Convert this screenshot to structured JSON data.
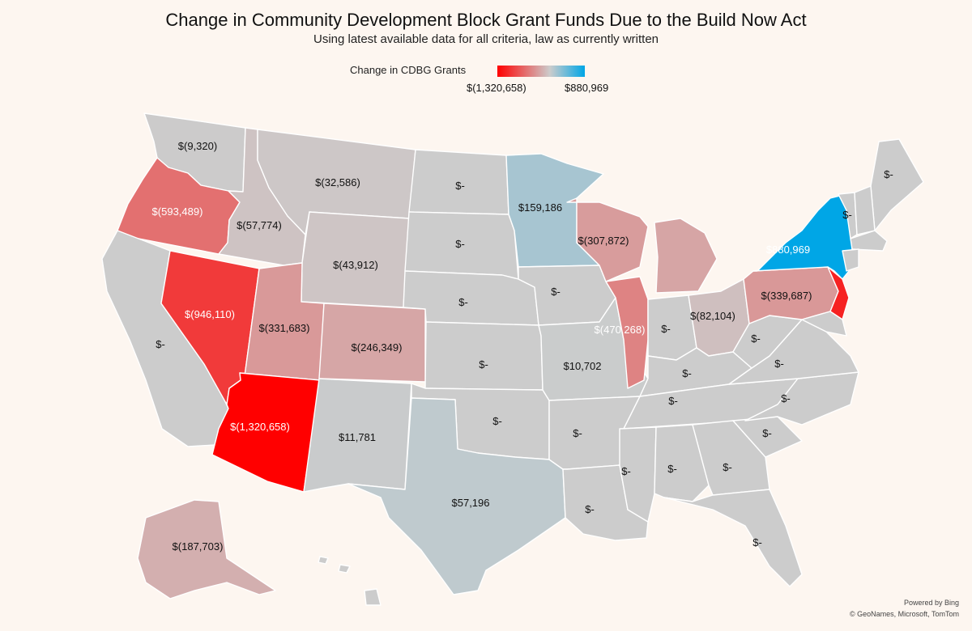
{
  "title": "Change in Community Development Block Grant Funds Due to the Build Now Act",
  "subtitle": "Using latest available data for all criteria, law as currently written",
  "legend": {
    "title": "Change in CDBG Grants",
    "min_label": "$(1,320,658)",
    "max_label": "$880,969",
    "colors": {
      "negative": "#ff0000",
      "zero": "#cccccc",
      "positive": "#00a6e6"
    }
  },
  "states": [
    {
      "id": "WA",
      "label": "$(9,320)",
      "value": -9320
    },
    {
      "id": "OR",
      "label": "$(593,489)",
      "value": -593489
    },
    {
      "id": "CA",
      "label": "$-",
      "value": 0
    },
    {
      "id": "NV",
      "label": "$(946,110)",
      "value": -946110
    },
    {
      "id": "ID",
      "label": "$(57,774)",
      "value": -57774
    },
    {
      "id": "MT",
      "label": "$(32,586)",
      "value": -32586
    },
    {
      "id": "WY",
      "label": "$(43,912)",
      "value": -43912
    },
    {
      "id": "UT",
      "label": "$(331,683)",
      "value": -331683
    },
    {
      "id": "AZ",
      "label": "$(1,320,658)",
      "value": -1320658
    },
    {
      "id": "CO",
      "label": "$(246,349)",
      "value": -246349
    },
    {
      "id": "NM",
      "label": "$11,781",
      "value": 11781
    },
    {
      "id": "ND",
      "label": "$-",
      "value": 0
    },
    {
      "id": "SD",
      "label": "$-",
      "value": 0
    },
    {
      "id": "NE",
      "label": "$-",
      "value": 0
    },
    {
      "id": "KS",
      "label": "$-",
      "value": 0
    },
    {
      "id": "OK",
      "label": "$-",
      "value": 0
    },
    {
      "id": "TX",
      "label": "$57,196",
      "value": 57196
    },
    {
      "id": "MN",
      "label": "$159,186",
      "value": 159186
    },
    {
      "id": "IA",
      "label": "$-",
      "value": 0
    },
    {
      "id": "MO",
      "label": "$10,702",
      "value": 10702
    },
    {
      "id": "AR",
      "label": "$-",
      "value": 0
    },
    {
      "id": "LA",
      "label": "$-",
      "value": 0
    },
    {
      "id": "WI",
      "label": "$(307,872)",
      "value": -307872
    },
    {
      "id": "IL",
      "label": "$(470,268)",
      "value": -470268
    },
    {
      "id": "MI",
      "label": "",
      "value": -250000
    },
    {
      "id": "IN",
      "label": "$-",
      "value": 0
    },
    {
      "id": "OH",
      "label": "$(82,104)",
      "value": -82104
    },
    {
      "id": "KY",
      "label": "$-",
      "value": 0
    },
    {
      "id": "TN",
      "label": "$-",
      "value": 0
    },
    {
      "id": "MS",
      "label": "$-",
      "value": 0
    },
    {
      "id": "AL",
      "label": "$-",
      "value": 0
    },
    {
      "id": "GA",
      "label": "$-",
      "value": 0
    },
    {
      "id": "FL",
      "label": "$-",
      "value": 0
    },
    {
      "id": "SC",
      "label": "$-",
      "value": 0
    },
    {
      "id": "NC",
      "label": "$-",
      "value": 0
    },
    {
      "id": "VA",
      "label": "$-",
      "value": 0
    },
    {
      "id": "WV",
      "label": "$-",
      "value": 0
    },
    {
      "id": "PA",
      "label": "$(339,687)",
      "value": -339687
    },
    {
      "id": "NY",
      "label": "$880,969",
      "value": 880969
    },
    {
      "id": "NJ",
      "label": "",
      "value": -1100000
    },
    {
      "id": "VT",
      "label": "$-",
      "value": 0
    },
    {
      "id": "ME",
      "label": "$-",
      "value": 0
    },
    {
      "id": "NH",
      "label": "",
      "value": 0
    },
    {
      "id": "MA",
      "label": "",
      "value": 0
    },
    {
      "id": "CT",
      "label": "",
      "value": 0
    },
    {
      "id": "MD",
      "label": "",
      "value": 0
    },
    {
      "id": "AK",
      "label": "$(187,703)",
      "value": -187703
    },
    {
      "id": "HI",
      "label": "",
      "value": 0
    }
  ],
  "credits": {
    "line1": "Powered by Bing",
    "line2": "© GeoNames, Microsoft, TomTom"
  }
}
